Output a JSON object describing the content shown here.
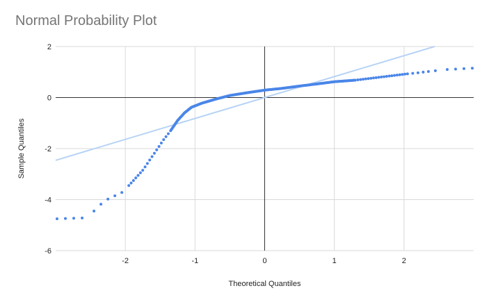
{
  "chart_data": {
    "type": "scatter",
    "title": "Normal Probability Plot",
    "xlabel": "Theoretical Quantiles",
    "ylabel": "Sample Quantiles",
    "xlim": [
      -3,
      3
    ],
    "ylim": [
      -6,
      2
    ],
    "x_ticks": [
      -2,
      -1,
      0,
      1,
      2
    ],
    "y_ticks": [
      -6,
      -4,
      -2,
      0,
      2
    ],
    "grid": true,
    "legend": "none",
    "colors": {
      "points": "#4a86e8",
      "reference_line": "#b6d3f5",
      "grid": "#d9d9d9",
      "zero_axis": "#333333"
    },
    "reference_line": {
      "slope": 0.82,
      "intercept": 0
    },
    "anchors": [
      [
        -2.98,
        -4.75
      ],
      [
        -2.62,
        -4.72
      ],
      [
        -2.45,
        -4.45
      ],
      [
        -2.35,
        -4.18
      ],
      [
        -2.25,
        -3.98
      ],
      [
        -2.15,
        -3.85
      ],
      [
        -2.05,
        -3.72
      ],
      [
        -1.95,
        -3.45
      ],
      [
        -1.85,
        -3.15
      ],
      [
        -1.75,
        -2.85
      ],
      [
        -1.65,
        -2.45
      ],
      [
        -1.55,
        -2.05
      ],
      [
        -1.45,
        -1.65
      ],
      [
        -1.35,
        -1.3
      ],
      [
        -1.25,
        -0.9
      ],
      [
        -1.15,
        -0.6
      ],
      [
        -1.05,
        -0.38
      ],
      [
        -0.9,
        -0.22
      ],
      [
        -0.7,
        -0.06
      ],
      [
        -0.5,
        0.08
      ],
      [
        -0.25,
        0.19
      ],
      [
        0.0,
        0.29
      ],
      [
        0.25,
        0.36
      ],
      [
        0.5,
        0.45
      ],
      [
        0.8,
        0.55
      ],
      [
        1.0,
        0.62
      ],
      [
        1.3,
        0.68
      ],
      [
        1.6,
        0.78
      ],
      [
        1.9,
        0.88
      ],
      [
        2.05,
        0.93
      ],
      [
        2.2,
        0.97
      ],
      [
        2.35,
        1.02
      ],
      [
        2.45,
        1.05
      ],
      [
        2.62,
        1.1
      ],
      [
        2.98,
        1.15
      ]
    ]
  }
}
